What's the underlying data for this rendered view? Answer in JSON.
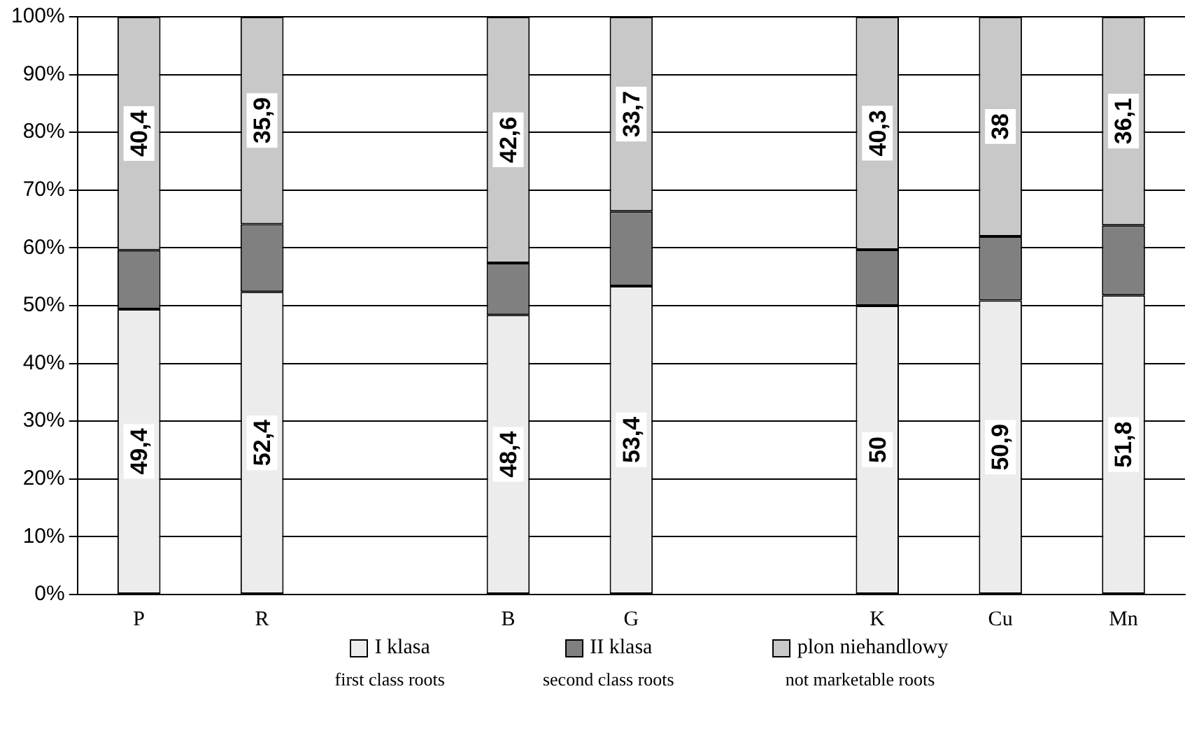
{
  "chart_data": {
    "type": "bar",
    "stacked": true,
    "categories": [
      "P",
      "R",
      null,
      "B",
      "G",
      null,
      "K",
      "Cu",
      "Mn"
    ],
    "series": [
      {
        "name": "I klasa",
        "color": "#ececec",
        "values": [
          49.4,
          52.4,
          null,
          48.4,
          53.4,
          null,
          50,
          50.9,
          51.8
        ],
        "value_labels": [
          "49,4",
          "52,4",
          null,
          "48,4",
          "53,4",
          null,
          "50",
          "50,9",
          "51,8"
        ]
      },
      {
        "name": "II klasa",
        "color": "#808080",
        "values": [
          10.2,
          11.7,
          null,
          9,
          12.9,
          null,
          9.7,
          11.1,
          12.1
        ]
      },
      {
        "name": "plon niehandlowy",
        "color": "#c8c8c8",
        "values": [
          40.4,
          35.9,
          null,
          42.6,
          33.7,
          null,
          40.3,
          38,
          36.1
        ],
        "value_labels": [
          "40,4",
          "35,9",
          null,
          "42,6",
          "33,7",
          null,
          "40,3",
          "38",
          "36,1"
        ]
      }
    ],
    "ylim": [
      0,
      100
    ],
    "yticks": [
      {
        "value": 0,
        "label": "0%"
      },
      {
        "value": 10,
        "label": "10%"
      },
      {
        "value": 20,
        "label": "20%"
      },
      {
        "value": 30,
        "label": "30%"
      },
      {
        "value": 40,
        "label": "40%"
      },
      {
        "value": 50,
        "label": "50%"
      },
      {
        "value": 60,
        "label": "60%"
      },
      {
        "value": 70,
        "label": "70%"
      },
      {
        "value": 80,
        "label": "80%"
      },
      {
        "value": 90,
        "label": "90%"
      },
      {
        "value": 100,
        "label": "100%"
      }
    ],
    "grid": "y",
    "legend": "bottom",
    "annotations": [
      "first class roots",
      "second class roots",
      "not marketable roots"
    ]
  }
}
